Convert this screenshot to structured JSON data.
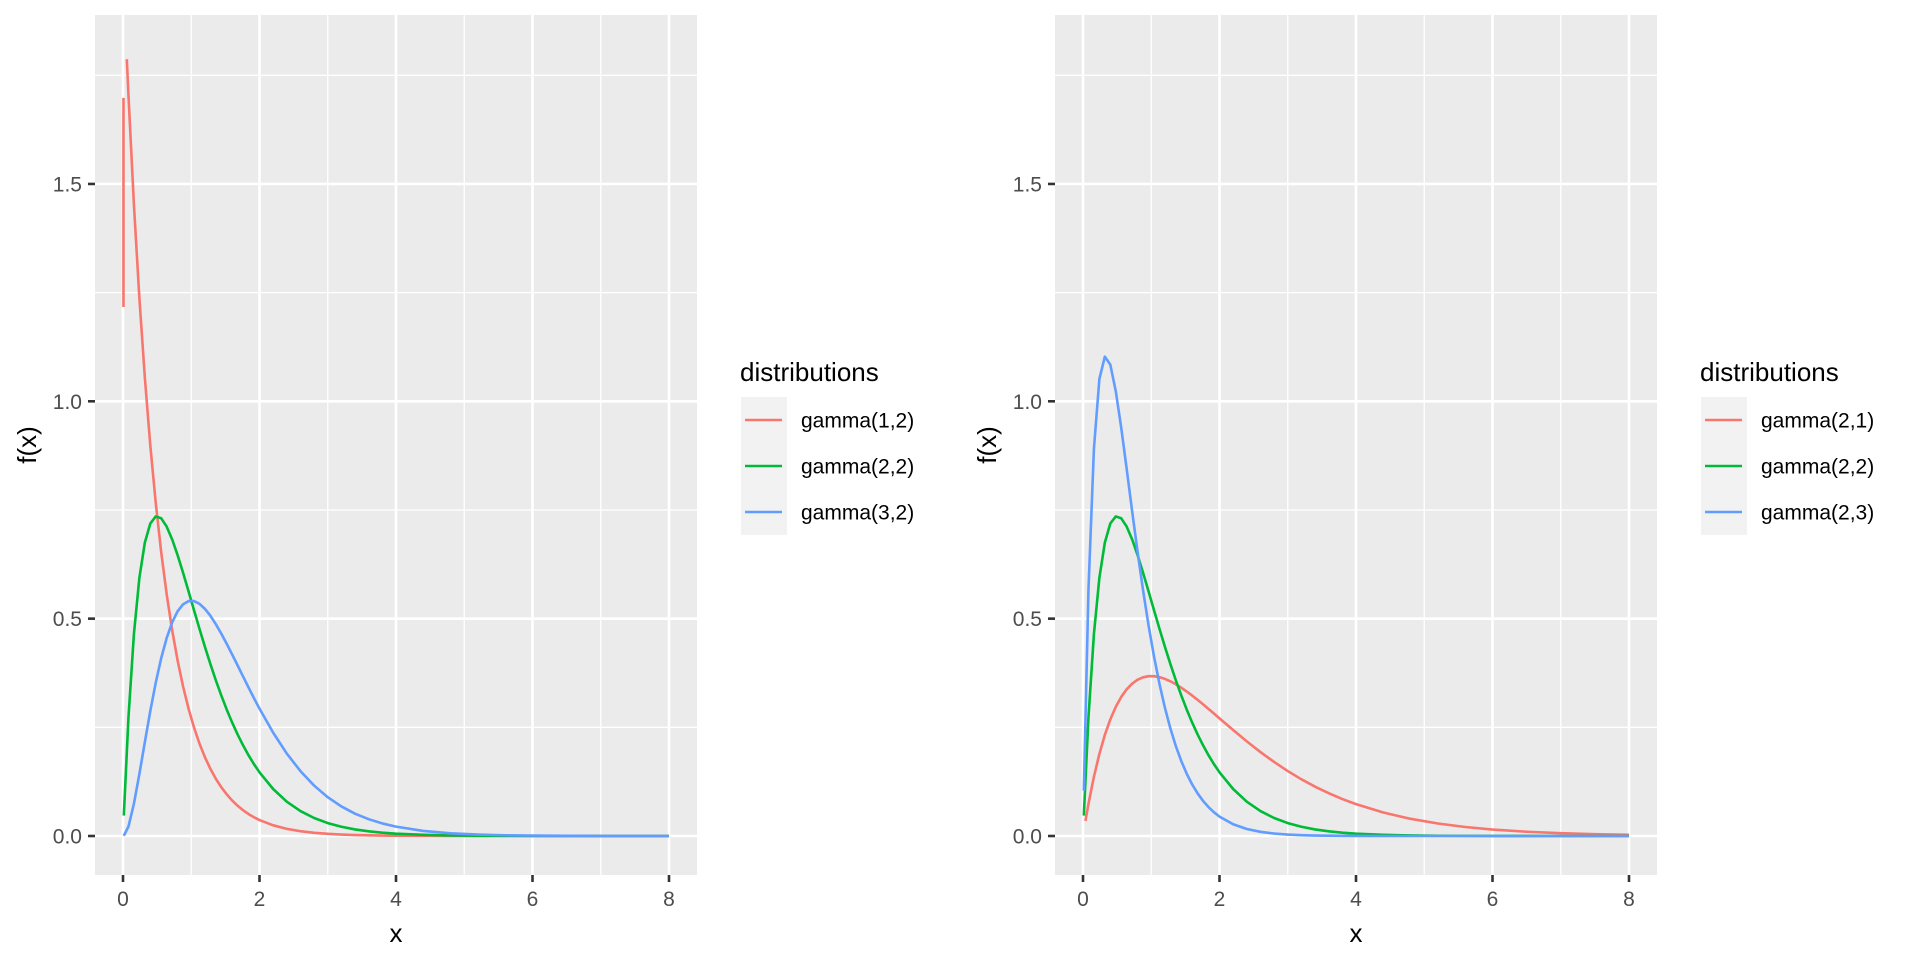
{
  "chart_data": [
    {
      "type": "line",
      "panel": "left",
      "title": "",
      "xlabel": "x",
      "ylabel": "f(x)",
      "xlim": [
        -0.41,
        8.41
      ],
      "ylim": [
        -0.09,
        1.889
      ],
      "x_ticks": [
        0,
        2,
        4,
        6,
        8
      ],
      "x_tick_labels": [
        "0",
        "2",
        "4",
        "6",
        "8"
      ],
      "y_ticks": [
        0,
        0.5,
        1.0,
        1.5
      ],
      "y_tick_labels": [
        "0.0",
        "0.5",
        "1.0",
        "1.5"
      ],
      "grid": true,
      "legend": {
        "title": "distributions",
        "position": "right",
        "entries": [
          "gamma(1,2)",
          "gamma(2,2)",
          "gamma(3,2)"
        ]
      },
      "series": [
        {
          "name": "gamma(1,2)",
          "color": "#F8766D",
          "x": [
            0.056,
            0.08,
            0.16,
            0.24,
            0.32,
            0.4,
            0.48,
            0.56,
            0.64,
            0.72,
            0.8,
            0.88,
            0.96,
            1.04,
            1.12,
            1.2,
            1.28,
            1.36,
            1.44,
            1.52,
            1.6,
            1.68,
            1.76,
            1.84,
            1.92,
            2.0,
            2.2,
            2.4,
            2.6,
            2.8,
            3.0,
            3.2,
            3.4,
            3.6,
            3.8,
            4.0,
            4.4,
            4.8,
            5.2,
            5.6,
            6.0,
            6.5,
            7.0,
            7.5,
            8.0
          ],
          "y": [
            1.787,
            1.7043,
            1.4523,
            1.2376,
            1.0546,
            0.8987,
            0.7658,
            0.6526,
            0.5561,
            0.4739,
            0.4038,
            0.3441,
            0.2932,
            0.2499,
            0.2129,
            0.1814,
            0.1546,
            0.1317,
            0.1123,
            0.0957,
            0.0815,
            0.0695,
            0.0592,
            0.0504,
            0.043,
            0.0366,
            0.0246,
            0.0165,
            0.011,
            0.0074,
            0.005,
            0.0033,
            0.0022,
            0.0015,
            0.001,
            0.0007,
            0.0003,
            0.0001,
            0.0001,
            0,
            0,
            0,
            0,
            0,
            0
          ]
        },
        {
          "name": "gamma(1,2) (segment near x=0)",
          "color": "#F8766D",
          "x": [
            0.007,
            0.007
          ],
          "y": [
            1.217,
            1.698
          ]
        },
        {
          "name": "gamma(2,2)",
          "color": "#00BA38",
          "x": [
            0.012,
            0.08,
            0.16,
            0.24,
            0.32,
            0.4,
            0.48,
            0.56,
            0.64,
            0.72,
            0.8,
            0.88,
            0.96,
            1.04,
            1.12,
            1.2,
            1.28,
            1.36,
            1.44,
            1.52,
            1.6,
            1.68,
            1.76,
            1.84,
            1.92,
            2.0,
            2.2,
            2.4,
            2.6,
            2.8,
            3.0,
            3.2,
            3.4,
            3.6,
            3.8,
            4.0,
            4.4,
            4.8,
            5.2,
            5.6,
            6.0,
            6.5,
            7.0,
            7.5,
            8.0
          ],
          "y": [
            0.0469,
            0.2727,
            0.4647,
            0.594,
            0.6749,
            0.7189,
            0.7351,
            0.7309,
            0.7118,
            0.6824,
            0.6461,
            0.6056,
            0.563,
            0.5197,
            0.4769,
            0.4355,
            0.3958,
            0.3583,
            0.3233,
            0.2908,
            0.2609,
            0.2334,
            0.2084,
            0.1856,
            0.165,
            0.1465,
            0.1081,
            0.079,
            0.0574,
            0.0414,
            0.0297,
            0.0212,
            0.0151,
            0.0108,
            0.0076,
            0.0054,
            0.0027,
            0.0013,
            0.0006,
            0.0003,
            0.0001,
            0.0001,
            0,
            0,
            0
          ]
        },
        {
          "name": "gamma(3,2)",
          "color": "#619CFF",
          "x": [
            0.012,
            0.08,
            0.16,
            0.24,
            0.32,
            0.4,
            0.48,
            0.56,
            0.64,
            0.72,
            0.8,
            0.88,
            0.96,
            1.04,
            1.12,
            1.2,
            1.28,
            1.36,
            1.44,
            1.52,
            1.6,
            1.68,
            1.76,
            1.84,
            1.92,
            2.0,
            2.2,
            2.4,
            2.6,
            2.8,
            3.0,
            3.2,
            3.4,
            3.6,
            3.8,
            4.0,
            4.4,
            4.8,
            5.2,
            5.6,
            6.0,
            6.5,
            7.0,
            7.5,
            8.0
          ],
          "y": [
            0.0006,
            0.0218,
            0.0744,
            0.1426,
            0.216,
            0.2876,
            0.3529,
            0.4093,
            0.4555,
            0.4913,
            0.5169,
            0.5329,
            0.5404,
            0.5405,
            0.5341,
            0.5225,
            0.5067,
            0.4873,
            0.4656,
            0.442,
            0.4174,
            0.3922,
            0.3668,
            0.3415,
            0.3168,
            0.2931,
            0.2378,
            0.1896,
            0.1493,
            0.116,
            0.0892,
            0.068,
            0.0513,
            0.0387,
            0.0289,
            0.0215,
            0.0117,
            0.0062,
            0.0033,
            0.0017,
            0.0009,
            0.0004,
            0.0002,
            0.0001,
            0
          ]
        }
      ]
    },
    {
      "type": "line",
      "panel": "right",
      "title": "",
      "xlabel": "x",
      "ylabel": "f(x)",
      "xlim": [
        -0.41,
        8.41
      ],
      "ylim": [
        -0.09,
        1.889
      ],
      "x_ticks": [
        0,
        2,
        4,
        6,
        8
      ],
      "x_tick_labels": [
        "0",
        "2",
        "4",
        "6",
        "8"
      ],
      "y_ticks": [
        0,
        0.5,
        1.0,
        1.5
      ],
      "y_tick_labels": [
        "0.0",
        "0.5",
        "1.0",
        "1.5"
      ],
      "grid": true,
      "legend": {
        "title": "distributions",
        "position": "right",
        "entries": [
          "gamma(2,1)",
          "gamma(2,2)",
          "gamma(2,3)"
        ]
      },
      "series": [
        {
          "name": "gamma(2,1)",
          "color": "#F8766D",
          "x": [
            0.036,
            0.08,
            0.16,
            0.24,
            0.32,
            0.4,
            0.48,
            0.56,
            0.64,
            0.72,
            0.8,
            0.88,
            0.96,
            1.04,
            1.12,
            1.2,
            1.28,
            1.36,
            1.44,
            1.52,
            1.6,
            1.68,
            1.76,
            1.84,
            1.92,
            2.0,
            2.2,
            2.4,
            2.6,
            2.8,
            3.0,
            3.2,
            3.4,
            3.6,
            3.8,
            4.0,
            4.4,
            4.8,
            5.2,
            5.6,
            6.0,
            6.5,
            7.0,
            7.5,
            8.0
          ],
          "y": [
            0.0347,
            0.0738,
            0.1363,
            0.1888,
            0.2324,
            0.2681,
            0.297,
            0.3199,
            0.3375,
            0.3505,
            0.3595,
            0.365,
            0.3676,
            0.3676,
            0.3654,
            0.3614,
            0.3559,
            0.3491,
            0.3412,
            0.3324,
            0.323,
            0.3131,
            0.3028,
            0.2922,
            0.2815,
            0.2707,
            0.2438,
            0.2177,
            0.1931,
            0.1703,
            0.1494,
            0.1304,
            0.1135,
            0.0984,
            0.085,
            0.0733,
            0.054,
            0.0395,
            0.0287,
            0.0207,
            0.0149,
            0.0098,
            0.0064,
            0.0041,
            0.0027
          ]
        },
        {
          "name": "gamma(2,2)",
          "color": "#00BA38",
          "x": [
            0.012,
            0.08,
            0.16,
            0.24,
            0.32,
            0.4,
            0.48,
            0.56,
            0.64,
            0.72,
            0.8,
            0.88,
            0.96,
            1.04,
            1.12,
            1.2,
            1.28,
            1.36,
            1.44,
            1.52,
            1.6,
            1.68,
            1.76,
            1.84,
            1.92,
            2.0,
            2.2,
            2.4,
            2.6,
            2.8,
            3.0,
            3.2,
            3.4,
            3.6,
            3.8,
            4.0,
            4.4,
            4.8,
            5.2,
            5.6,
            6.0,
            6.5,
            7.0,
            7.5,
            8.0
          ],
          "y": [
            0.0469,
            0.2727,
            0.4647,
            0.594,
            0.6749,
            0.7189,
            0.7351,
            0.7309,
            0.7118,
            0.6824,
            0.6461,
            0.6056,
            0.563,
            0.5197,
            0.4769,
            0.4355,
            0.3958,
            0.3583,
            0.3233,
            0.2908,
            0.2609,
            0.2334,
            0.2084,
            0.1856,
            0.165,
            0.1465,
            0.1081,
            0.079,
            0.0574,
            0.0414,
            0.0297,
            0.0212,
            0.0151,
            0.0108,
            0.0076,
            0.0054,
            0.0027,
            0.0013,
            0.0006,
            0.0003,
            0.0001,
            0.0001,
            0,
            0,
            0
          ]
        },
        {
          "name": "gamma(2,3)",
          "color": "#619CFF",
          "x": [
            0.012,
            0.08,
            0.16,
            0.24,
            0.32,
            0.4,
            0.48,
            0.56,
            0.64,
            0.72,
            0.8,
            0.88,
            0.96,
            1.04,
            1.12,
            1.2,
            1.28,
            1.36,
            1.44,
            1.52,
            1.6,
            1.68,
            1.76,
            1.84,
            1.92,
            2.0,
            2.2,
            2.4,
            2.6,
            2.8,
            3.0,
            3.2,
            3.4,
            3.6,
            3.8,
            4.0,
            4.4,
            4.8,
            5.2,
            5.6,
            6.0,
            6.5,
            7.0,
            7.5,
            8.0
          ],
          "y": [
            0.1042,
            0.5664,
            0.891,
            1.0514,
            1.1027,
            1.0843,
            1.0235,
            0.9393,
            0.8445,
            0.7473,
            0.6532,
            0.5652,
            0.485,
            0.4133,
            0.3502,
            0.2951,
            0.2476,
            0.207,
            0.1724,
            0.1431,
            0.1185,
            0.0979,
            0.0806,
            0.0664,
            0.0545,
            0.0446,
            0.027,
            0.0161,
            0.0096,
            0.0057,
            0.0033,
            0.0019,
            0.0011,
            0.0007,
            0.0004,
            0.0002,
            0,
            0,
            0,
            0,
            0,
            0,
            0,
            0,
            0
          ]
        }
      ]
    }
  ],
  "left": {
    "xlabel": "x",
    "ylabel": "f(x)",
    "x_tick_labels": [
      "0",
      "2",
      "4",
      "6",
      "8"
    ],
    "y_tick_labels": [
      "0.0",
      "0.5",
      "1.0",
      "1.5"
    ],
    "legend": {
      "title": "distributions",
      "entries": [
        {
          "label": "gamma(1,2)",
          "color": "#F8766D"
        },
        {
          "label": "gamma(2,2)",
          "color": "#00BA38"
        },
        {
          "label": "gamma(3,2)",
          "color": "#619CFF"
        }
      ]
    }
  },
  "right": {
    "xlabel": "x",
    "ylabel": "f(x)",
    "x_tick_labels": [
      "0",
      "2",
      "4",
      "6",
      "8"
    ],
    "y_tick_labels": [
      "0.0",
      "0.5",
      "1.0",
      "1.5"
    ],
    "legend": {
      "title": "distributions",
      "entries": [
        {
          "label": "gamma(2,1)",
          "color": "#F8766D"
        },
        {
          "label": "gamma(2,2)",
          "color": "#00BA38"
        },
        {
          "label": "gamma(2,3)",
          "color": "#619CFF"
        }
      ]
    }
  },
  "colors": {
    "panel_background": "#EBEBEB",
    "grid": "#FFFFFF",
    "legend_key_background": "#F2F2F2",
    "tick_label": "#4D4D4D",
    "series_red": "#F8766D",
    "series_green": "#00BA38",
    "series_blue": "#619CFF"
  }
}
